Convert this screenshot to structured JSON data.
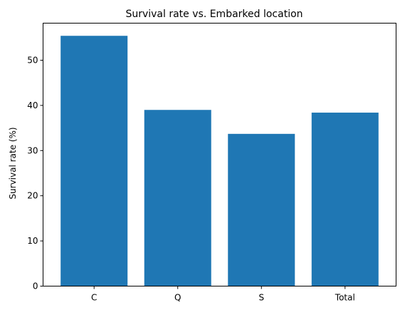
{
  "chart_data": {
    "type": "bar",
    "title": "Survival rate vs. Embarked location",
    "xlabel": "",
    "ylabel": "Survival rate (%)",
    "categories": [
      "C",
      "Q",
      "S",
      "Total"
    ],
    "values": [
      55.4,
      39.0,
      33.7,
      38.4
    ],
    "ylim": [
      0,
      58.2
    ],
    "yticks": [
      0,
      10,
      20,
      30,
      40,
      50
    ],
    "grid": false,
    "bar_color": "#1f77b4"
  }
}
